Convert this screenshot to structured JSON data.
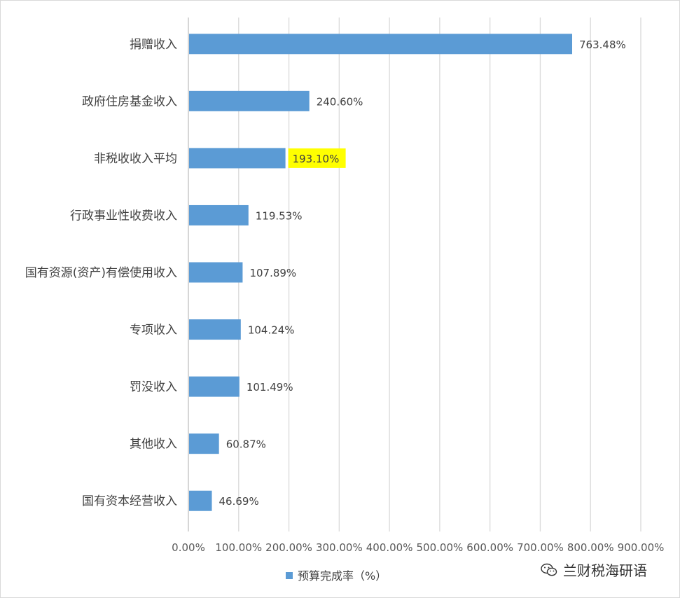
{
  "chart_data": {
    "type": "bar",
    "orientation": "horizontal",
    "categories": [
      "捐赠收入",
      "政府住房基金收入",
      "非税收收入平均",
      "行政事业性收费收入",
      "国有资源(资产)有偿使用收入",
      "专项收入",
      "罚没收入",
      "其他收入",
      "国有资本经营收入"
    ],
    "series": [
      {
        "name": "预算完成率（%）",
        "values": [
          763.48,
          240.6,
          193.1,
          119.53,
          107.89,
          104.24,
          101.49,
          60.87,
          46.69
        ],
        "data_labels": [
          "763.48%",
          "240.60%",
          "193.10%",
          "119.53%",
          "107.89%",
          "104.24%",
          "101.49%",
          "60.87%",
          "46.69%"
        ],
        "color": "#5b9bd5"
      }
    ],
    "highlighted_label_index": 2,
    "highlight_color": "#ffff00",
    "x_ticks": [
      0,
      100,
      200,
      300,
      400,
      500,
      600,
      700,
      800,
      900
    ],
    "x_tick_labels": [
      "0.00%",
      "100.00%",
      "200.00%",
      "300.00%",
      "400.00%",
      "500.00%",
      "600.00%",
      "700.00%",
      "800.00%",
      "900.00%"
    ],
    "xlim": [
      0,
      900
    ],
    "grid": "vertical",
    "legend_position": "bottom"
  },
  "watermark": {
    "text": "兰财税海研语",
    "icon": "wechat-icon"
  }
}
